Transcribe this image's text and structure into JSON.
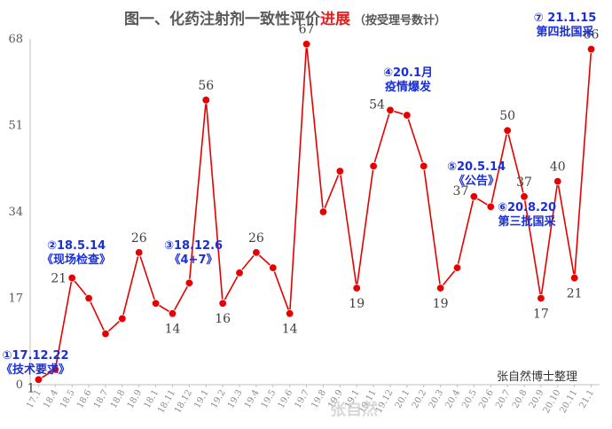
{
  "chart_data": {
    "type": "line",
    "title": "图一、化药注射剂一致性评价",
    "title_highlight": "进展",
    "subtitle": "（按受理号数计）",
    "x": [
      "17.12",
      "18.4",
      "18.5",
      "18.6",
      "18.7",
      "18.8",
      "18.9",
      "18.10",
      "18.11",
      "18.12",
      "19.1",
      "19.2",
      "19.3",
      "19.4",
      "19.5",
      "19.6",
      "19.7",
      "19.8",
      "19.9",
      "19.10",
      "19.11",
      "19.12",
      "20.1",
      "20.2",
      "20.3",
      "20.4",
      "20.5",
      "20.6",
      "20.7",
      "20.8",
      "20.9",
      "20.10",
      "20.11",
      "21.1"
    ],
    "x_tick_labels": [
      "17.1",
      "18.4",
      "18.5",
      "18.6",
      "18.7",
      "18.8",
      "18.9",
      "18.1",
      "18.11",
      "18.12",
      "19.1",
      "19.2",
      "19.3",
      "19.4",
      "19.5",
      "19.6",
      "19.7",
      "19.8",
      "19.9",
      "19.1",
      "19.11",
      "19.12",
      "20.1",
      "20.2",
      "20.3",
      "20.4",
      "20.5",
      "20.6",
      "20.7",
      "20.8",
      "20.9",
      "20.10",
      "20.11",
      "21.1"
    ],
    "series": [
      {
        "values": [
          1,
          3,
          21,
          17,
          10,
          13,
          26,
          16,
          14,
          20,
          56,
          16,
          22,
          26,
          23,
          14,
          67,
          34,
          42,
          19,
          43,
          54,
          53,
          43,
          19,
          23,
          37,
          35,
          50,
          37,
          17,
          40,
          21,
          66
        ],
        "color": "#e60000"
      }
    ],
    "data_labels": [
      {
        "index": 0,
        "text": "1"
      },
      {
        "index": 2,
        "text": "21"
      },
      {
        "index": 6,
        "text": "26"
      },
      {
        "index": 8,
        "text": "14"
      },
      {
        "index": 10,
        "text": "56"
      },
      {
        "index": 11,
        "text": "16"
      },
      {
        "index": 13,
        "text": "26"
      },
      {
        "index": 15,
        "text": "14"
      },
      {
        "index": 16,
        "text": "67"
      },
      {
        "index": 19,
        "text": "19"
      },
      {
        "index": 21,
        "text": "54"
      },
      {
        "index": 24,
        "text": "19"
      },
      {
        "index": 26,
        "text": "37"
      },
      {
        "index": 28,
        "text": "50"
      },
      {
        "index": 29,
        "text": "37"
      },
      {
        "index": 30,
        "text": "17"
      },
      {
        "index": 31,
        "text": "40"
      },
      {
        "index": 32,
        "text": "21"
      },
      {
        "index": 33,
        "text": "66"
      }
    ],
    "ylim": [
      0,
      68
    ],
    "yticks": [
      "0",
      "17",
      "34",
      "51",
      "68"
    ],
    "annotations": [
      {
        "lines": [
          "①17.12.22",
          "《技术要求》"
        ],
        "index": 0
      },
      {
        "lines": [
          "②18.5.14",
          "《现场检查》"
        ],
        "index": 2
      },
      {
        "lines": [
          "③18.12.6",
          "《4+7》"
        ],
        "index": 9
      },
      {
        "lines": [
          "④20.1月",
          "疫情爆发"
        ],
        "index": 22
      },
      {
        "lines": [
          "⑤20.5.14",
          "《公告》"
        ],
        "index": 26
      },
      {
        "lines": [
          "⑥20.8.20",
          "第三批国采"
        ],
        "index": 29
      },
      {
        "lines": [
          "⑦ 21.1.15",
          "第四批国采"
        ],
        "index": 33
      }
    ],
    "credit": "张自然博士整理",
    "watermark": "张自然",
    "grid": false,
    "legend": "none"
  }
}
